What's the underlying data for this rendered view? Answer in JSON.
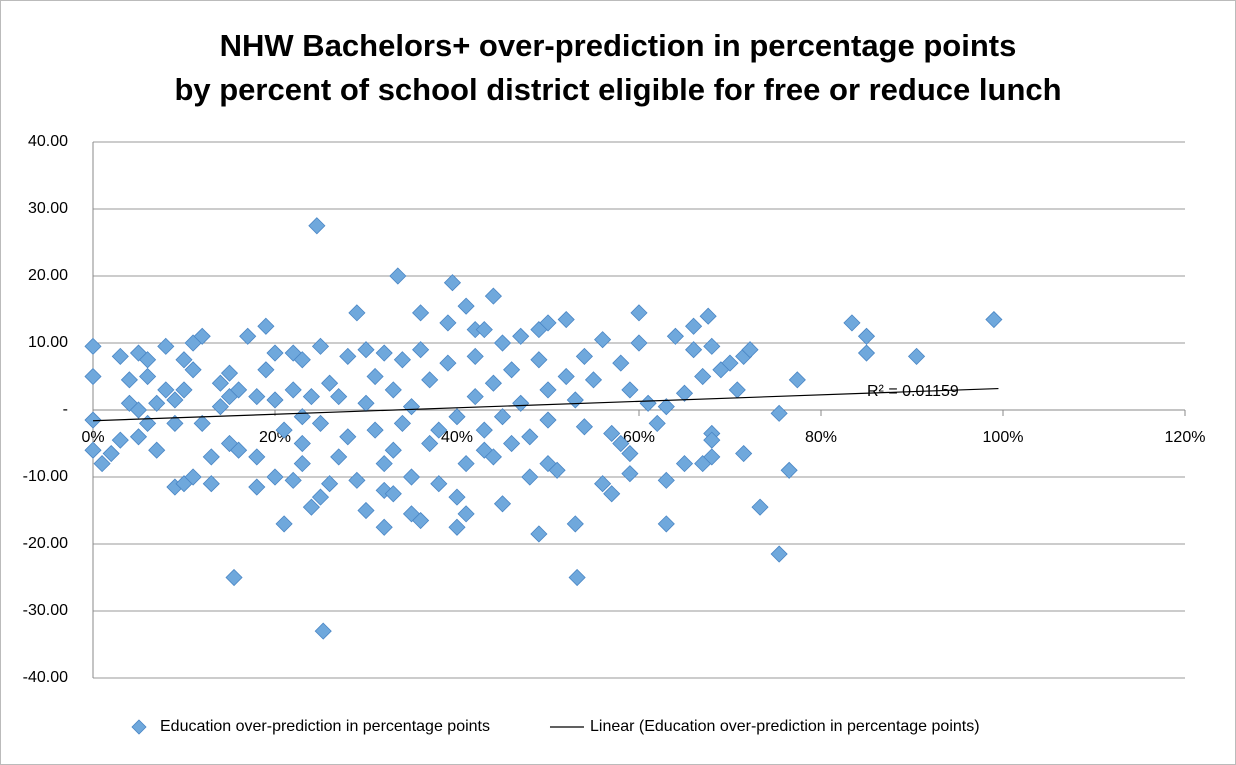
{
  "chart_data": {
    "type": "scatter",
    "title": [
      "NHW Bachelors+ over-prediction in percentage points",
      "by percent of school district eligible for free or reduce lunch"
    ],
    "xlim": [
      0,
      1.2
    ],
    "xticks": [
      {
        "value": 0,
        "label": "0%"
      },
      {
        "value": 0.2,
        "label": "20%"
      },
      {
        "value": 0.4,
        "label": "40%"
      },
      {
        "value": 0.6,
        "label": "60%"
      },
      {
        "value": 0.8,
        "label": "80%"
      },
      {
        "value": 1,
        "label": "100%"
      },
      {
        "value": 1.2,
        "label": "120%"
      }
    ],
    "ylim": [
      -40,
      40
    ],
    "yticks": [
      {
        "value": -40,
        "label": "-40.00"
      },
      {
        "value": -30,
        "label": "-30.00"
      },
      {
        "value": -20,
        "label": "-20.00"
      },
      {
        "value": -10,
        "label": "-10.00"
      },
      {
        "value": 0,
        "label": "-"
      },
      {
        "value": 10,
        "label": "10.00"
      },
      {
        "value": 20,
        "label": "20.00"
      },
      {
        "value": 30,
        "label": "30.00"
      },
      {
        "value": 40,
        "label": "40.00"
      }
    ],
    "grid": true,
    "legend": "bottom",
    "annotation": "R² = 0.01159",
    "series": [
      {
        "name": "Education over-prediction in percentage points",
        "color": "#6fa8dc",
        "marker": "diamond",
        "x": [
          0,
          0,
          0,
          0,
          0.01,
          0.02,
          0.03,
          0.03,
          0.04,
          0.04,
          0.05,
          0.05,
          0.05,
          0.06,
          0.06,
          0.06,
          0.07,
          0.07,
          0.08,
          0.08,
          0.09,
          0.09,
          0.09,
          0.1,
          0.1,
          0.1,
          0.11,
          0.11,
          0.11,
          0.12,
          0.12,
          0.13,
          0.13,
          0.14,
          0.14,
          0.15,
          0.15,
          0.15,
          0.16,
          0.16,
          0.155,
          0.17,
          0.18,
          0.18,
          0.18,
          0.19,
          0.19,
          0.2,
          0.2,
          0.2,
          0.21,
          0.21,
          0.22,
          0.22,
          0.22,
          0.23,
          0.23,
          0.23,
          0.23,
          0.24,
          0.24,
          0.25,
          0.25,
          0.25,
          0.26,
          0.26,
          0.246,
          0.253,
          0.27,
          0.27,
          0.28,
          0.28,
          0.29,
          0.29,
          0.3,
          0.3,
          0.3,
          0.31,
          0.31,
          0.32,
          0.32,
          0.32,
          0.32,
          0.33,
          0.33,
          0.33,
          0.34,
          0.335,
          0.34,
          0.35,
          0.35,
          0.35,
          0.36,
          0.36,
          0.36,
          0.37,
          0.37,
          0.38,
          0.38,
          0.39,
          0.39,
          0.395,
          0.4,
          0.4,
          0.4,
          0.41,
          0.41,
          0.41,
          0.42,
          0.42,
          0.42,
          0.43,
          0.43,
          0.43,
          0.44,
          0.44,
          0.44,
          0.45,
          0.45,
          0.45,
          0.46,
          0.46,
          0.47,
          0.47,
          0.48,
          0.48,
          0.49,
          0.49,
          0.5,
          0.5,
          0.5,
          0.5,
          0.49,
          0.51,
          0.52,
          0.52,
          0.53,
          0.54,
          0.54,
          0.53,
          0.532,
          0.55,
          0.56,
          0.56,
          0.57,
          0.57,
          0.58,
          0.58,
          0.59,
          0.59,
          0.59,
          0.6,
          0.6,
          0.61,
          0.62,
          0.63,
          0.63,
          0.63,
          0.64,
          0.65,
          0.65,
          0.66,
          0.66,
          0.67,
          0.67,
          0.68,
          0.68,
          0.676,
          0.68,
          0.68,
          0.69,
          0.7,
          0.708,
          0.715,
          0.715,
          0.722,
          0.733,
          0.754,
          0.754,
          0.765,
          0.774,
          0.834,
          0.85,
          0.85,
          0.905,
          0.99
        ],
        "y": [
          9.5,
          5,
          -1.5,
          -6,
          -8,
          -6.5,
          -4.5,
          8,
          4.5,
          1,
          8.5,
          0,
          -4,
          5,
          7.5,
          -2,
          1,
          -6,
          3,
          9.5,
          1.5,
          -11.5,
          -2,
          7.5,
          3,
          -11,
          -10,
          6,
          10,
          11,
          -2,
          -7,
          -11,
          4,
          0.5,
          2,
          -5,
          5.5,
          -6,
          3,
          -25,
          11,
          -11.5,
          -7,
          2,
          12.5,
          6,
          -10,
          1.5,
          8.5,
          -17,
          -3,
          -10.5,
          3,
          8.5,
          -5,
          -1,
          7.5,
          -8,
          -14.5,
          2,
          9.5,
          -13,
          -2,
          4,
          -11,
          27.5,
          -33,
          -7,
          2,
          8,
          -4,
          14.5,
          -10.5,
          9,
          -15,
          1,
          -3,
          5,
          -8,
          -12,
          8.5,
          -17.5,
          3,
          -12.5,
          -6,
          7.5,
          20,
          -2,
          -15.5,
          -10,
          0.5,
          -16.5,
          9,
          14.5,
          -5,
          4.5,
          -11,
          -3,
          13,
          7,
          19,
          -13,
          -1,
          -17.5,
          -8,
          15.5,
          -15.5,
          2,
          12,
          8,
          -6,
          12,
          -3,
          -7,
          17,
          4,
          -14,
          -1,
          10,
          6,
          -5,
          11,
          1,
          -10,
          -4,
          7.5,
          12,
          -8,
          3,
          13,
          -1.5,
          -18.5,
          -9,
          13.5,
          5,
          1.5,
          8,
          -2.5,
          -17,
          -25,
          4.5,
          10.5,
          -11,
          -3.5,
          -12.5,
          7,
          -5,
          -9.5,
          3,
          -6.5,
          10,
          14.5,
          1,
          -2,
          -17,
          -10.5,
          0.5,
          11,
          2.5,
          -8,
          12.5,
          9,
          -8,
          5,
          -3.5,
          9.5,
          14,
          -7,
          -4.5,
          6,
          7,
          3,
          -6.5,
          8,
          9,
          -14.5,
          -0.5,
          -21.5,
          -9,
          4.5,
          13,
          11,
          8.5,
          8,
          13.5
        ]
      },
      {
        "name": "Linear (Education over-prediction in percentage points)",
        "color": "#000000",
        "type": "line",
        "x": [
          0,
          0.995
        ],
        "y": [
          -1.6,
          3.2
        ]
      }
    ]
  }
}
